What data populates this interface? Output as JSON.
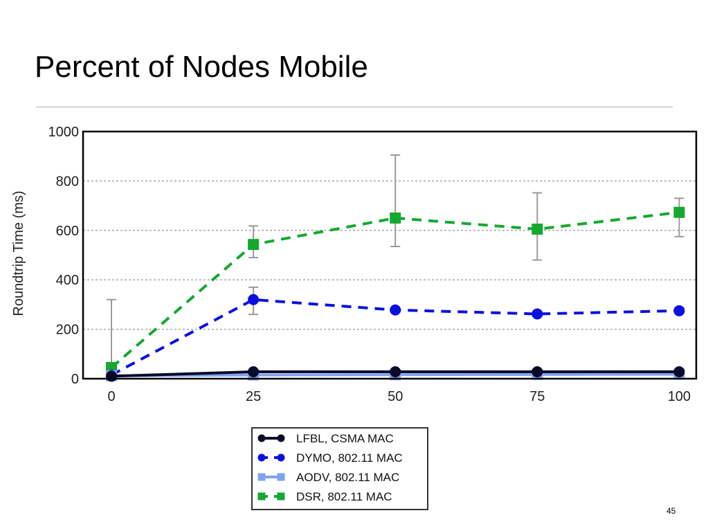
{
  "slide": {
    "title": "Percent of Nodes Mobile",
    "page_number": "45"
  },
  "chart_data": {
    "type": "line",
    "title": "",
    "xlabel": "",
    "ylabel": "Roundtrip Time (ms)",
    "x": [
      0,
      25,
      50,
      75,
      100
    ],
    "x_ticks": [
      "0",
      "25",
      "50",
      "75",
      "100"
    ],
    "y_ticks": [
      "0",
      "200",
      "400",
      "600",
      "800",
      "1000"
    ],
    "xlim": [
      -5,
      103
    ],
    "ylim": [
      0,
      1000
    ],
    "grid": "horizontal dashed",
    "legend_position": "bottom-center",
    "series": [
      {
        "name": "LFBL, CSMA MAC",
        "color": "#0a0a2a",
        "marker": "circle",
        "line": "solid",
        "values": [
          10,
          28,
          28,
          28,
          28
        ],
        "errors": [
          [
            0,
            0
          ],
          [
            0,
            0
          ],
          [
            0,
            0
          ],
          [
            0,
            0
          ],
          [
            0,
            0
          ]
        ]
      },
      {
        "name": "DYMO, 802.11 MAC",
        "color": "#0a10e0",
        "marker": "circle",
        "line": "dashed",
        "values": [
          15,
          320,
          278,
          262,
          275
        ],
        "errors": [
          [
            0,
            0
          ],
          [
            260,
            370
          ],
          [
            0,
            0
          ],
          [
            0,
            0
          ],
          [
            0,
            0
          ]
        ]
      },
      {
        "name": "AODV, 802.11 MAC",
        "color": "#7fa3ee",
        "marker": "square",
        "line": "solid",
        "values": [
          12,
          15,
          16,
          17,
          18
        ],
        "errors": [
          [
            0,
            0
          ],
          [
            0,
            0
          ],
          [
            0,
            0
          ],
          [
            0,
            0
          ],
          [
            0,
            0
          ]
        ]
      },
      {
        "name": "DSR, 802.11 MAC",
        "color": "#14a830",
        "marker": "square",
        "line": "dashed",
        "values": [
          45,
          543,
          650,
          605,
          673
        ],
        "errors": [
          [
            0,
            320
          ],
          [
            490,
            618
          ],
          [
            535,
            905
          ],
          [
            480,
            752
          ],
          [
            575,
            730
          ]
        ]
      }
    ]
  }
}
